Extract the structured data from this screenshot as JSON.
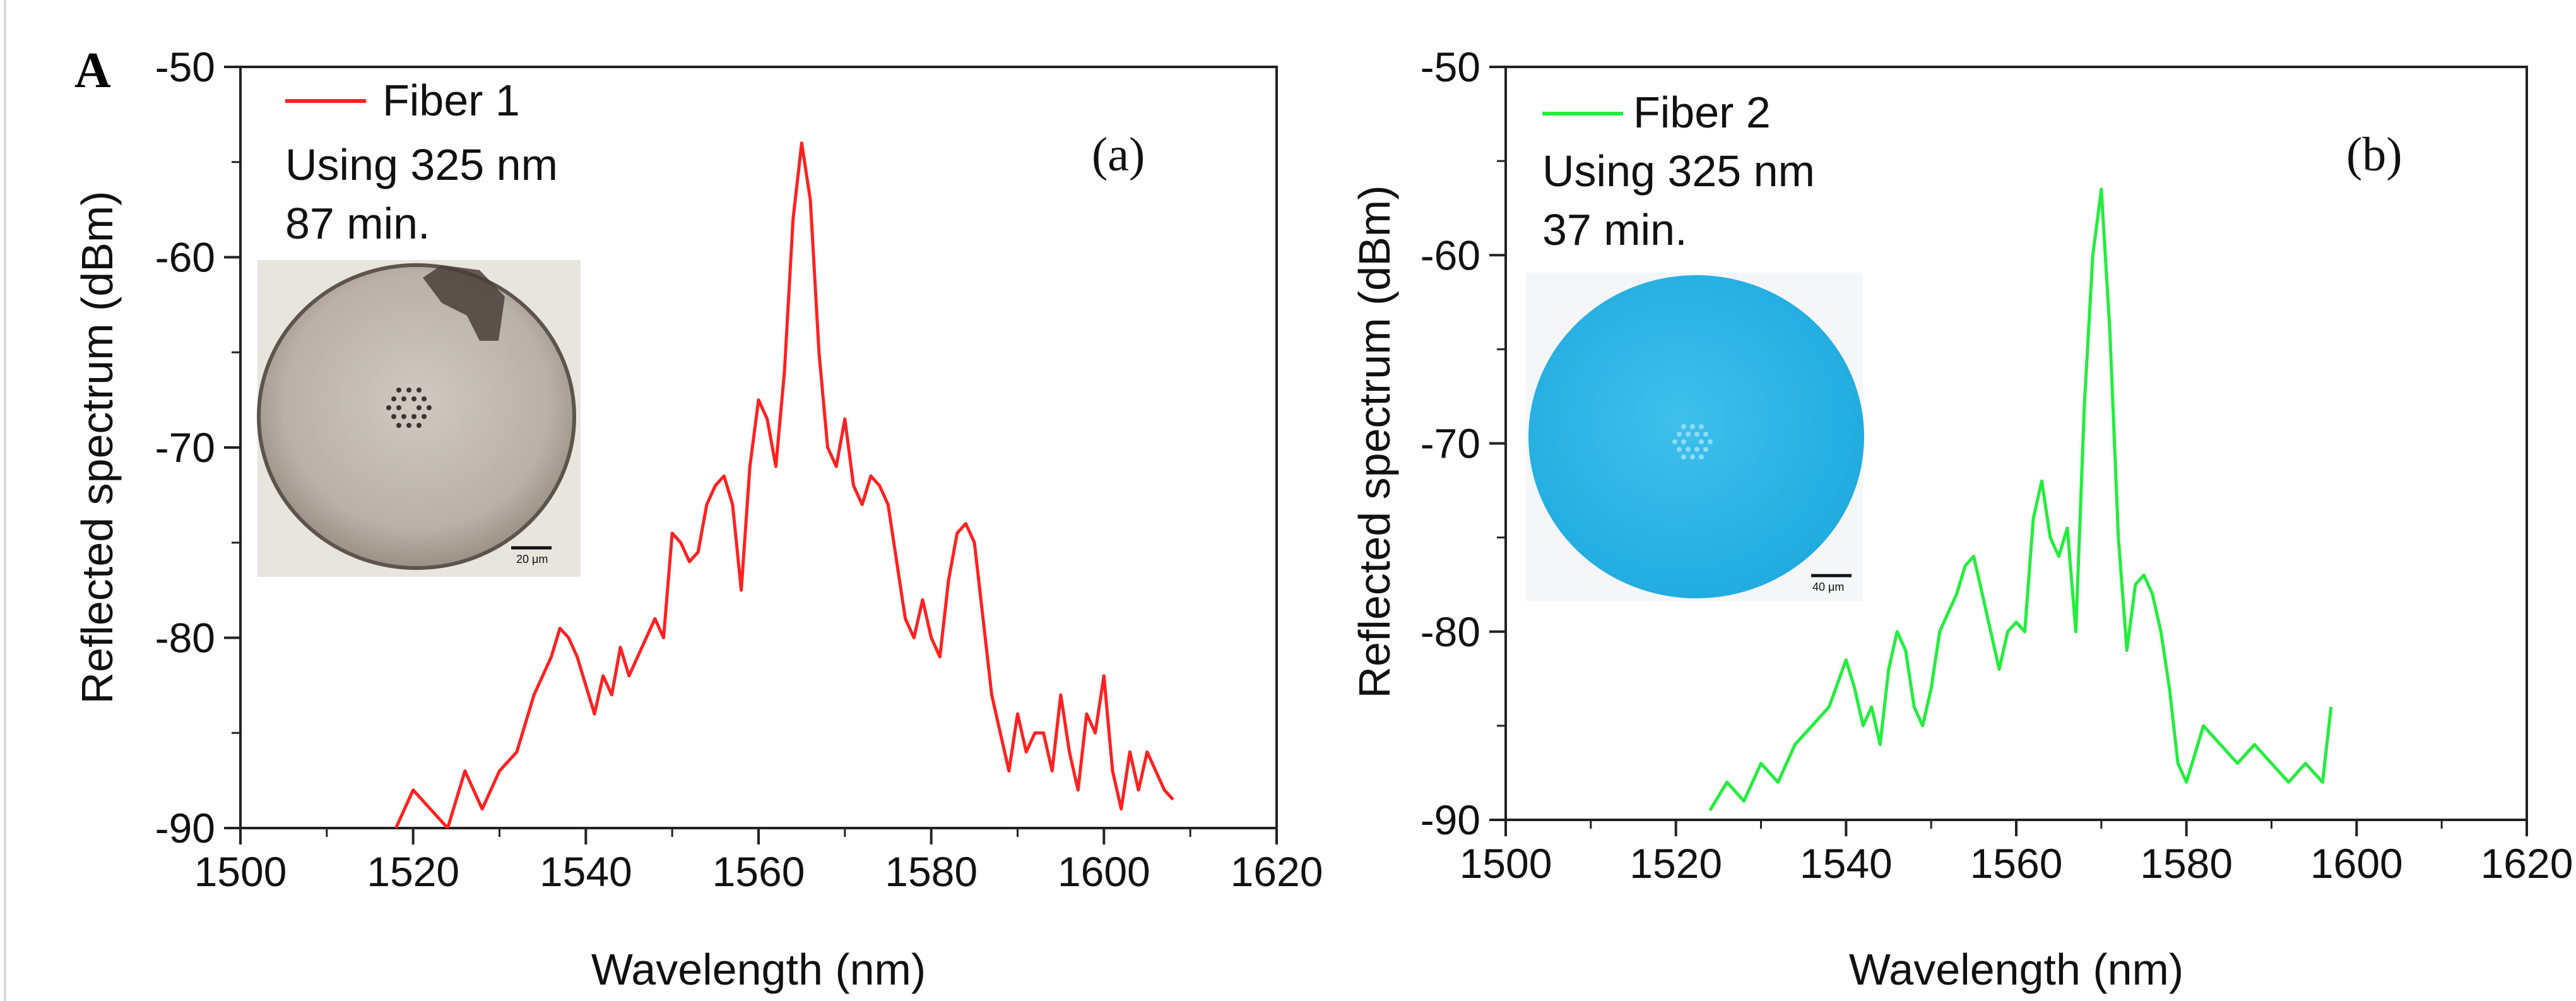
{
  "figure_label": "A",
  "chart_data": [
    {
      "type": "line",
      "panel_tag": "(a)",
      "xlabel": "Wavelength (nm)",
      "ylabel": "Reflected spectrum (dBm)",
      "xlim": [
        1500,
        1620
      ],
      "ylim": [
        -90,
        -50
      ],
      "xticks": [
        "1500",
        "1520",
        "1540",
        "1560",
        "1580",
        "1600",
        "1620"
      ],
      "yticks": [
        "-90",
        "-80",
        "-70",
        "-60",
        "-50"
      ],
      "legend": {
        "label": "Fiber 1",
        "line2": "Using 325 nm",
        "line3": "87 min."
      },
      "inset": {
        "scale_bar": "20 μm"
      },
      "series": [
        {
          "name": "Fiber 1",
          "color": "#ff2020",
          "x": [
            1518,
            1520,
            1522,
            1524,
            1526,
            1528,
            1530,
            1532,
            1534,
            1536,
            1537,
            1538,
            1539,
            1540,
            1541,
            1542,
            1543,
            1544,
            1545,
            1546,
            1547,
            1548,
            1549,
            1550,
            1551,
            1552,
            1553,
            1554,
            1555,
            1556,
            1557,
            1558,
            1559,
            1560,
            1561,
            1562,
            1563,
            1564,
            1565,
            1566,
            1567,
            1568,
            1569,
            1570,
            1571,
            1572,
            1573,
            1574,
            1575,
            1576,
            1577,
            1578,
            1579,
            1580,
            1581,
            1582,
            1583,
            1584,
            1585,
            1586,
            1587,
            1588,
            1589,
            1590,
            1591,
            1592,
            1593,
            1594,
            1595,
            1596,
            1597,
            1598,
            1599,
            1600,
            1601,
            1602,
            1603,
            1604,
            1605,
            1606,
            1607,
            1608
          ],
          "y": [
            -90,
            -88,
            -89,
            -90,
            -87,
            -89,
            -87,
            -86,
            -83,
            -81,
            -79.5,
            -80,
            -81,
            -82.5,
            -84,
            -82,
            -83,
            -80.5,
            -82,
            -81,
            -80,
            -79,
            -80,
            -74.5,
            -75,
            -76,
            -75.5,
            -73,
            -72,
            -71.5,
            -73,
            -77.5,
            -71,
            -67.5,
            -68.5,
            -71,
            -66,
            -58,
            -54,
            -57,
            -65,
            -70,
            -71,
            -68.5,
            -72,
            -73,
            -71.5,
            -72,
            -73,
            -76,
            -79,
            -80,
            -78,
            -80,
            -81,
            -77,
            -74.5,
            -74,
            -75,
            -79,
            -83,
            -85,
            -87,
            -84,
            -86,
            -85,
            -85,
            -87,
            -83,
            -86,
            -88,
            -84,
            -85,
            -82,
            -87,
            -89,
            -86,
            -88,
            -86,
            -87,
            -88,
            -88.5
          ]
        }
      ]
    },
    {
      "type": "line",
      "panel_tag": "(b)",
      "xlabel": "Wavelength (nm)",
      "ylabel": "Reflected spectrum (dBm)",
      "xlim": [
        1500,
        1620
      ],
      "ylim": [
        -90,
        -50
      ],
      "xticks": [
        "1500",
        "1520",
        "1540",
        "1560",
        "1580",
        "1600",
        "1620"
      ],
      "yticks": [
        "-90",
        "-80",
        "-70",
        "-60",
        "-50"
      ],
      "legend": {
        "label": "Fiber 2",
        "line2": "Using 325 nm",
        "line3": "37 min."
      },
      "inset": {
        "scale_bar": "40 μm"
      },
      "series": [
        {
          "name": "Fiber 2",
          "color": "#22ee3c",
          "x": [
            1524,
            1526,
            1528,
            1530,
            1532,
            1534,
            1536,
            1538,
            1540,
            1541,
            1542,
            1543,
            1544,
            1545,
            1546,
            1547,
            1548,
            1549,
            1550,
            1551,
            1552,
            1553,
            1554,
            1555,
            1556,
            1557,
            1558,
            1559,
            1560,
            1561,
            1562,
            1563,
            1564,
            1565,
            1566,
            1567,
            1568,
            1569,
            1570,
            1571,
            1572,
            1573,
            1574,
            1575,
            1576,
            1577,
            1578,
            1579,
            1580,
            1582,
            1584,
            1586,
            1588,
            1590,
            1592,
            1594,
            1596,
            1597
          ],
          "y": [
            -89.5,
            -88,
            -89,
            -87,
            -88,
            -86,
            -85,
            -84,
            -81.5,
            -83,
            -85,
            -84,
            -86,
            -82,
            -80,
            -81,
            -84,
            -85,
            -83,
            -80,
            -79,
            -78,
            -76.5,
            -76,
            -78,
            -80,
            -82,
            -80,
            -79.5,
            -80,
            -74,
            -72,
            -75,
            -76,
            -74.5,
            -80,
            -68,
            -60,
            -56.5,
            -64,
            -75,
            -81,
            -77.5,
            -77,
            -78,
            -80,
            -83,
            -87,
            -88,
            -85,
            -86,
            -87,
            -86,
            -87,
            -88,
            -87,
            -88,
            -84
          ]
        }
      ]
    }
  ]
}
